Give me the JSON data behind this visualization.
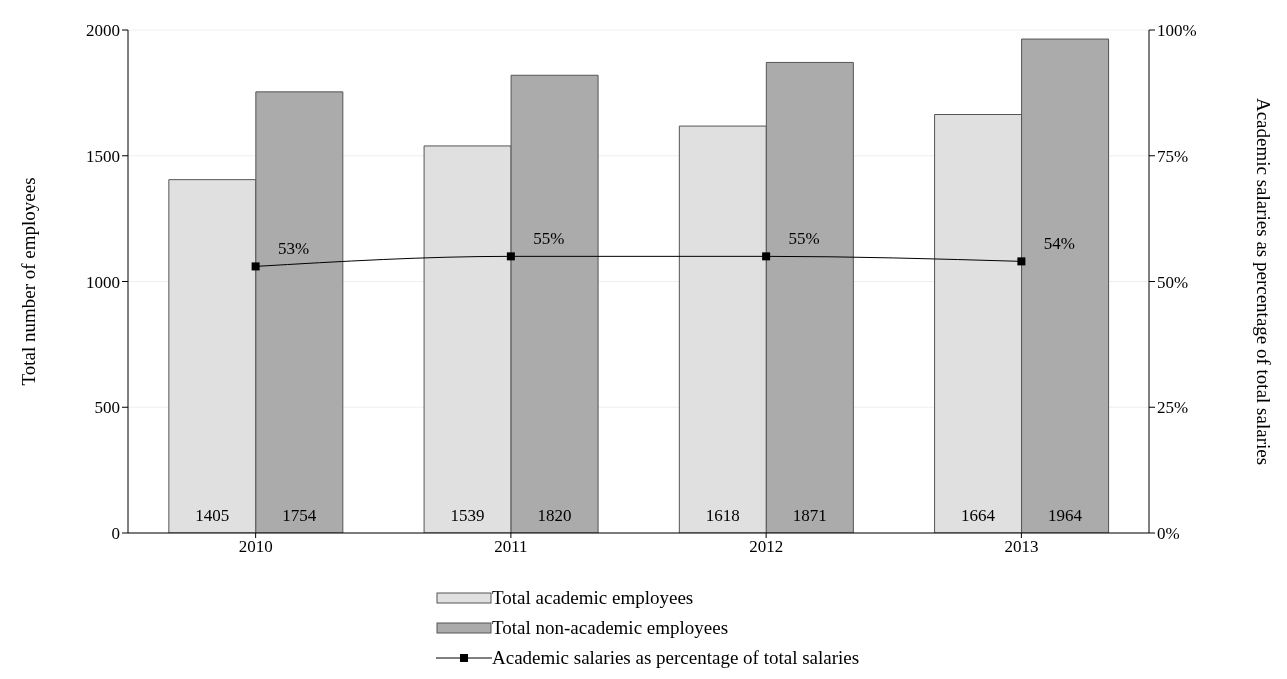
{
  "chart_data": {
    "type": "bar",
    "categories": [
      "2010",
      "2011",
      "2012",
      "2013"
    ],
    "ylabel": "Total number of employees",
    "y2label": "Academic salaries as percentage of total salaries",
    "ylim": [
      0,
      2000
    ],
    "yticks": [
      0,
      500,
      1000,
      1500,
      2000
    ],
    "y2lim": [
      0,
      100
    ],
    "y2ticks": [
      {
        "value": 0,
        "label": "0%"
      },
      {
        "value": 25,
        "label": "25%"
      },
      {
        "value": 50,
        "label": "50%"
      },
      {
        "value": 75,
        "label": "75%"
      },
      {
        "value": 100,
        "label": "100%"
      }
    ],
    "grid": "y",
    "legend": "bottom",
    "marker": "square",
    "line_style": "solid",
    "series": [
      {
        "name": "Total academic employees",
        "color": "#e0e0e0",
        "values": [
          1405,
          1539,
          1618,
          1664
        ],
        "value_labels": [
          "1405",
          "1539",
          "1618",
          "1664"
        ]
      },
      {
        "name": "Total non-academic employees",
        "color": "#ababab",
        "values": [
          1754,
          1820,
          1871,
          1964
        ],
        "value_labels": [
          "1754",
          "1820",
          "1871",
          "1964"
        ]
      },
      {
        "name": "Academic salaries as percentage of total salaries",
        "type": "line",
        "axis": "y2",
        "color": "#000000",
        "values": [
          53,
          55,
          55,
          54
        ],
        "value_labels": [
          "53%",
          "55%",
          "55%",
          "54%"
        ]
      }
    ]
  }
}
